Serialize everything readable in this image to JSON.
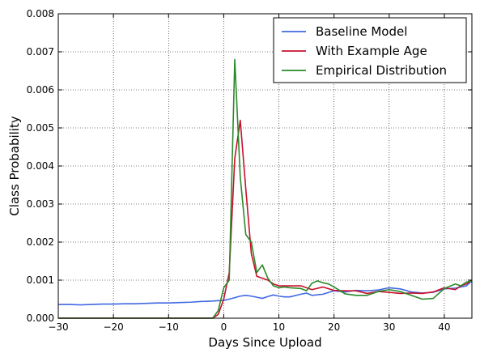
{
  "chart_data": {
    "type": "line",
    "title": "",
    "xlabel": "Days Since Upload",
    "ylabel": "Class Probability",
    "xlim": [
      -30,
      45
    ],
    "ylim": [
      0,
      0.008
    ],
    "xticks": [
      -30,
      -20,
      -10,
      0,
      10,
      20,
      30,
      40
    ],
    "xtick_labels": [
      "−30",
      "−20",
      "−10",
      "0",
      "10",
      "20",
      "30",
      "40"
    ],
    "yticks": [
      0,
      0.001,
      0.002,
      0.003,
      0.004,
      0.005,
      0.006,
      0.007,
      0.008
    ],
    "ytick_labels": [
      "0.000",
      "0.001",
      "0.002",
      "0.003",
      "0.004",
      "0.005",
      "0.006",
      "0.007",
      "0.008"
    ],
    "grid": true,
    "legend_position": "top-right",
    "series": [
      {
        "name": "Baseline Model",
        "color": "#4169e1",
        "points": [
          [
            -30,
            0.00036
          ],
          [
            -28,
            0.00036
          ],
          [
            -26,
            0.00035
          ],
          [
            -24,
            0.00036
          ],
          [
            -22,
            0.00037
          ],
          [
            -20,
            0.00037
          ],
          [
            -18,
            0.00038
          ],
          [
            -16,
            0.00038
          ],
          [
            -14,
            0.00039
          ],
          [
            -12,
            0.0004
          ],
          [
            -10,
            0.0004
          ],
          [
            -8,
            0.00041
          ],
          [
            -6,
            0.00042
          ],
          [
            -4,
            0.00044
          ],
          [
            -2,
            0.00045
          ],
          [
            0,
            0.00047
          ],
          [
            1,
            0.0005
          ],
          [
            2,
            0.00054
          ],
          [
            3,
            0.00058
          ],
          [
            4,
            0.0006
          ],
          [
            5,
            0.00058
          ],
          [
            6,
            0.00055
          ],
          [
            7,
            0.00052
          ],
          [
            8,
            0.00057
          ],
          [
            9,
            0.00061
          ],
          [
            10,
            0.00058
          ],
          [
            11,
            0.00056
          ],
          [
            12,
            0.00056
          ],
          [
            14,
            0.00063
          ],
          [
            15,
            0.00066
          ],
          [
            16,
            0.0006
          ],
          [
            18,
            0.00063
          ],
          [
            20,
            0.00072
          ],
          [
            22,
            0.00069
          ],
          [
            24,
            0.00073
          ],
          [
            26,
            0.00072
          ],
          [
            28,
            0.00074
          ],
          [
            30,
            0.0008
          ],
          [
            32,
            0.00077
          ],
          [
            34,
            0.00069
          ],
          [
            36,
            0.00066
          ],
          [
            38,
            0.00068
          ],
          [
            40,
            0.00077
          ],
          [
            42,
            0.00079
          ],
          [
            44,
            0.00085
          ],
          [
            45,
            0.00098
          ]
        ]
      },
      {
        "name": "With Example Age",
        "color": "#c8102e",
        "points": [
          [
            -30,
            0
          ],
          [
            -4,
            0
          ],
          [
            -2,
            0
          ],
          [
            -1,
            0.0001
          ],
          [
            0,
            0.0005
          ],
          [
            1,
            0.0012
          ],
          [
            2,
            0.0042
          ],
          [
            3,
            0.0052
          ],
          [
            4,
            0.0034
          ],
          [
            5,
            0.0017
          ],
          [
            6,
            0.0011
          ],
          [
            7,
            0.00105
          ],
          [
            8,
            0.001
          ],
          [
            9,
            0.0009
          ],
          [
            10,
            0.00085
          ],
          [
            12,
            0.00085
          ],
          [
            14,
            0.00085
          ],
          [
            16,
            0.00075
          ],
          [
            18,
            0.00082
          ],
          [
            20,
            0.00073
          ],
          [
            22,
            0.00072
          ],
          [
            24,
            0.00072
          ],
          [
            26,
            0.00065
          ],
          [
            28,
            0.0007
          ],
          [
            30,
            0.00068
          ],
          [
            32,
            0.00065
          ],
          [
            34,
            0.00066
          ],
          [
            36,
            0.00065
          ],
          [
            38,
            0.00069
          ],
          [
            40,
            0.0008
          ],
          [
            42,
            0.00075
          ],
          [
            43,
            0.00085
          ],
          [
            44,
            0.0009
          ],
          [
            45,
            0.001
          ]
        ]
      },
      {
        "name": "Empirical Distribution",
        "color": "#2a8a2a",
        "points": [
          [
            -30,
            0
          ],
          [
            -4,
            0
          ],
          [
            -2,
            0
          ],
          [
            -1,
            0.0002
          ],
          [
            0,
            0.0008
          ],
          [
            1,
            0.001
          ],
          [
            2,
            0.0068
          ],
          [
            3,
            0.0037
          ],
          [
            4,
            0.0022
          ],
          [
            5,
            0.002
          ],
          [
            6,
            0.0012
          ],
          [
            7,
            0.0014
          ],
          [
            8,
            0.00105
          ],
          [
            9,
            0.00085
          ],
          [
            10,
            0.0008
          ],
          [
            11,
            0.00082
          ],
          [
            12,
            0.0008
          ],
          [
            14,
            0.00078
          ],
          [
            15,
            0.00072
          ],
          [
            16,
            0.00092
          ],
          [
            17,
            0.00098
          ],
          [
            18,
            0.00093
          ],
          [
            19,
            0.0009
          ],
          [
            20,
            0.00082
          ],
          [
            22,
            0.00064
          ],
          [
            24,
            0.0006
          ],
          [
            26,
            0.0006
          ],
          [
            28,
            0.0007
          ],
          [
            30,
            0.00075
          ],
          [
            32,
            0.0007
          ],
          [
            34,
            0.0006
          ],
          [
            36,
            0.0005
          ],
          [
            38,
            0.00052
          ],
          [
            40,
            0.00078
          ],
          [
            42,
            0.0009
          ],
          [
            43,
            0.00085
          ],
          [
            44,
            0.00095
          ],
          [
            45,
            0.00098
          ]
        ]
      }
    ]
  }
}
